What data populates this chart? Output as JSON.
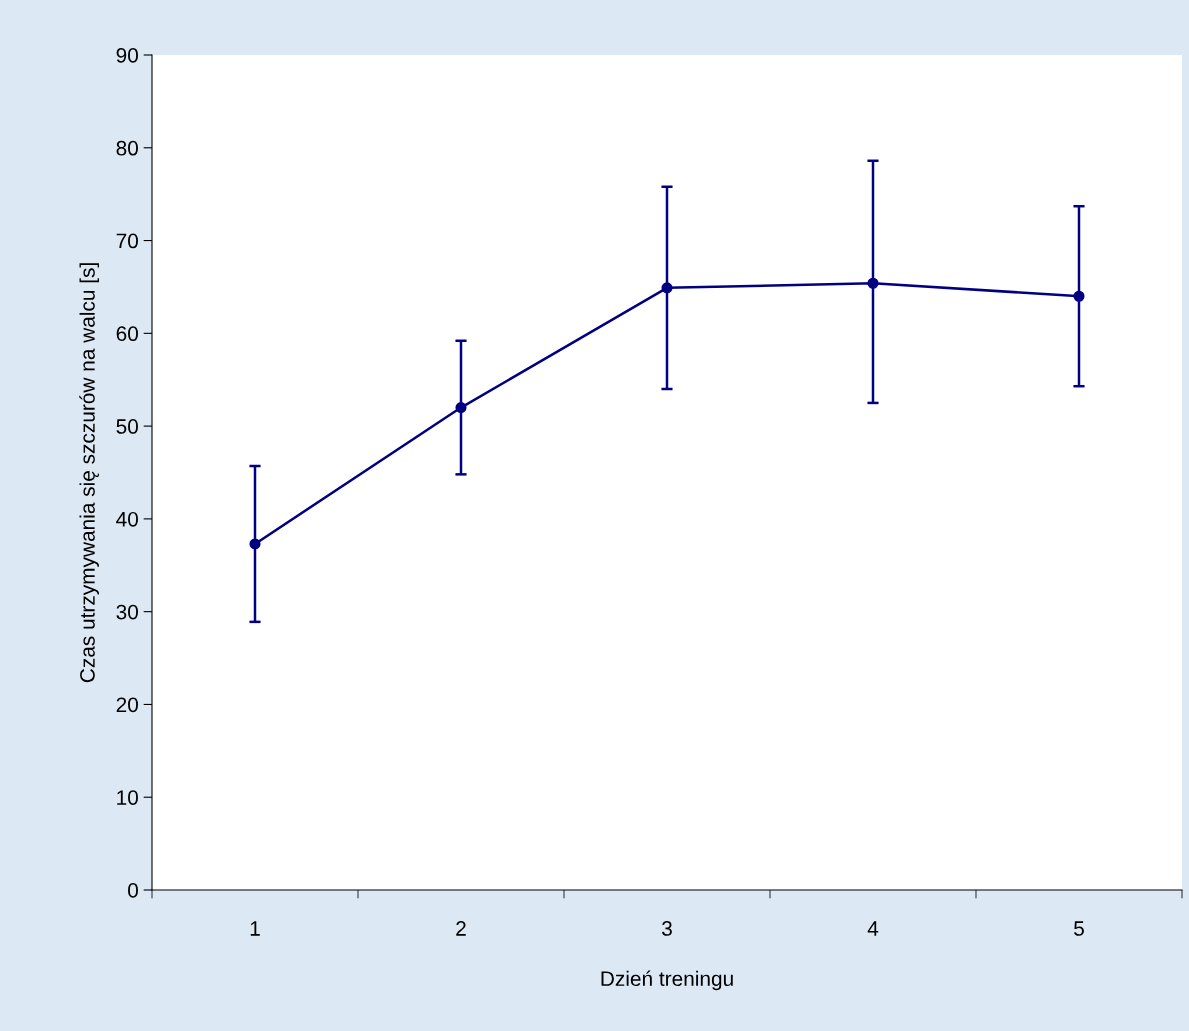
{
  "chart_data": {
    "type": "line",
    "xlabel": "Dzień treningu",
    "ylabel": "Czas utrzymywania się szczurów na walcu [s]",
    "categories": [
      "1",
      "2",
      "3",
      "4",
      "5"
    ],
    "series": [
      {
        "color": "#000080",
        "values": [
          37.3,
          52.0,
          64.9,
          65.4,
          64.0
        ],
        "errors": [
          [
            28.9,
            45.7
          ],
          [
            44.8,
            59.2
          ],
          [
            54.0,
            75.8
          ],
          [
            52.5,
            78.6
          ],
          [
            54.3,
            73.7
          ]
        ]
      }
    ],
    "ylim": [
      0,
      90
    ],
    "yticks": [
      0,
      10,
      20,
      30,
      40,
      50,
      60,
      70,
      80,
      90
    ],
    "grid": false,
    "legend": false,
    "marker": "circle",
    "line_style": "solid"
  }
}
